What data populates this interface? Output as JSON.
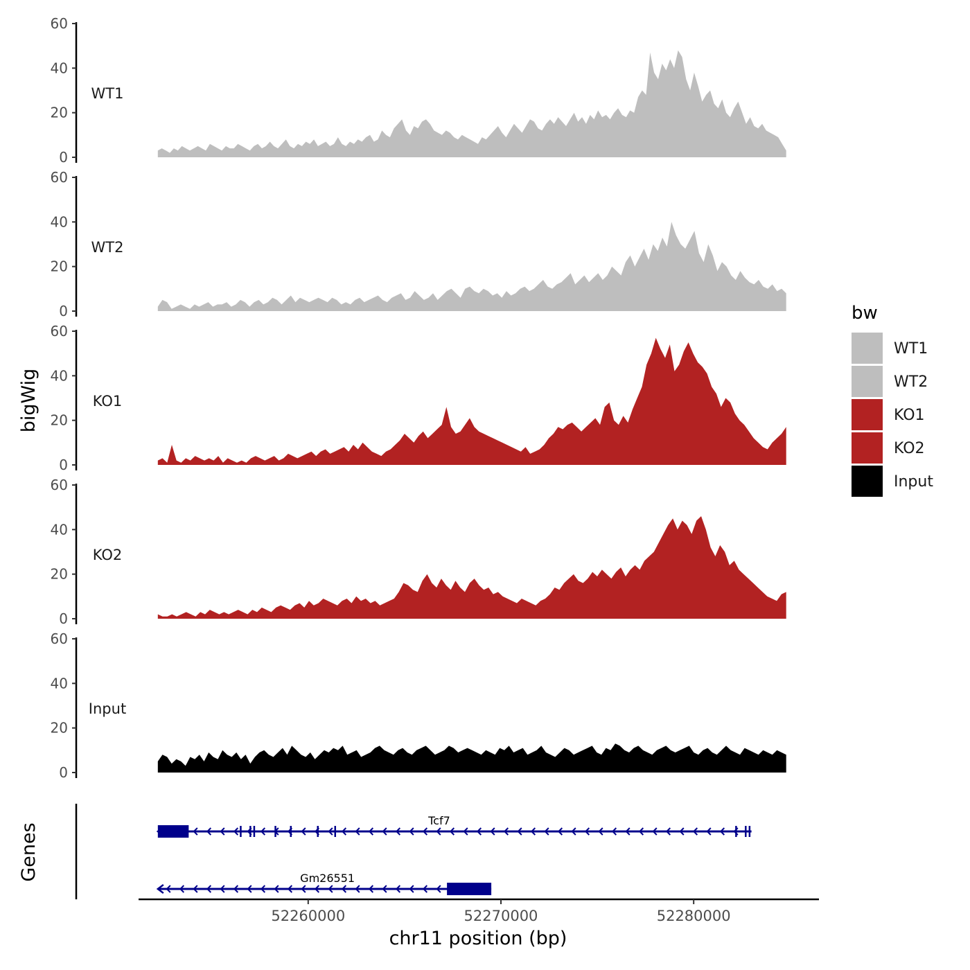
{
  "chart_data": {
    "type": "area",
    "title": "",
    "ylabel": "bigWig",
    "xlabel": "chr11 position (bp)",
    "xlim": [
      52251200,
      52286500
    ],
    "data_x_range": [
      52252200,
      52284800
    ],
    "y_ticks": [
      0,
      20,
      40,
      60
    ],
    "x_ticks": [
      52260000,
      52270000,
      52280000
    ],
    "x_tick_labels": [
      "52260000",
      "52270000",
      "52280000"
    ],
    "legend": {
      "title": "bw",
      "placement": "right",
      "entries": [
        {
          "label": "WT1",
          "color": "#BEBEBE"
        },
        {
          "label": "WT2",
          "color": "#BEBEBE"
        },
        {
          "label": "KO1",
          "color": "#B22222"
        },
        {
          "label": "KO2",
          "color": "#B22222"
        },
        {
          "label": "Input",
          "color": "#000000"
        }
      ]
    },
    "series": [
      {
        "name": "WT1",
        "label": "WT1",
        "color": "#BEBEBE",
        "ylim": [
          0,
          60
        ],
        "values": [
          3,
          4,
          3,
          2,
          4,
          3,
          5,
          4,
          3,
          4,
          5,
          4,
          3,
          6,
          5,
          4,
          3,
          5,
          4,
          4,
          6,
          5,
          4,
          3,
          5,
          6,
          4,
          5,
          7,
          5,
          4,
          6,
          8,
          5,
          4,
          6,
          5,
          7,
          6,
          8,
          5,
          6,
          7,
          5,
          6,
          9,
          6,
          5,
          7,
          6,
          8,
          7,
          9,
          10,
          7,
          8,
          12,
          10,
          9,
          13,
          15,
          17,
          12,
          10,
          14,
          13,
          16,
          17,
          15,
          12,
          11,
          10,
          12,
          11,
          9,
          8,
          10,
          9,
          8,
          7,
          6,
          9,
          8,
          10,
          12,
          14,
          11,
          9,
          12,
          15,
          13,
          11,
          14,
          17,
          16,
          13,
          12,
          15,
          17,
          15,
          18,
          16,
          14,
          17,
          20,
          16,
          18,
          15,
          19,
          17,
          21,
          18,
          19,
          17,
          20,
          22,
          19,
          18,
          21,
          20,
          27,
          30,
          28,
          47,
          38,
          35,
          42,
          39,
          44,
          40,
          48,
          45,
          35,
          30,
          38,
          32,
          25,
          28,
          30,
          24,
          22,
          26,
          20,
          18,
          22,
          25,
          20,
          15,
          18,
          14,
          13,
          15,
          12,
          11,
          10,
          9,
          6,
          3
        ]
      },
      {
        "name": "WT2",
        "label": "WT2",
        "color": "#BEBEBE",
        "ylim": [
          0,
          60
        ],
        "values": [
          2,
          5,
          4,
          1,
          2,
          3,
          2,
          1,
          3,
          2,
          3,
          4,
          2,
          3,
          3,
          4,
          2,
          3,
          5,
          4,
          2,
          4,
          5,
          3,
          4,
          6,
          5,
          3,
          5,
          7,
          4,
          6,
          5,
          4,
          5,
          6,
          5,
          4,
          6,
          5,
          3,
          4,
          3,
          5,
          6,
          4,
          5,
          6,
          7,
          5,
          4,
          6,
          7,
          8,
          5,
          6,
          9,
          7,
          5,
          6,
          8,
          5,
          7,
          9,
          10,
          8,
          6,
          10,
          11,
          9,
          8,
          10,
          9,
          7,
          8,
          6,
          9,
          7,
          8,
          10,
          11,
          9,
          10,
          12,
          14,
          11,
          10,
          12,
          13,
          15,
          17,
          12,
          14,
          16,
          13,
          15,
          17,
          14,
          16,
          20,
          18,
          16,
          22,
          25,
          20,
          24,
          28,
          23,
          30,
          27,
          33,
          29,
          40,
          34,
          30,
          28,
          32,
          36,
          26,
          22,
          30,
          25,
          18,
          22,
          20,
          16,
          14,
          18,
          15,
          13,
          12,
          14,
          11,
          10,
          12,
          9,
          10,
          8
        ]
      },
      {
        "name": "KO1",
        "label": "KO1",
        "color": "#B22222",
        "ylim": [
          0,
          60
        ],
        "values": [
          2,
          3,
          1,
          9,
          2,
          1,
          3,
          2,
          4,
          3,
          2,
          3,
          2,
          4,
          1,
          3,
          2,
          1,
          2,
          1,
          3,
          4,
          3,
          2,
          3,
          4,
          2,
          3,
          5,
          4,
          3,
          4,
          5,
          6,
          4,
          6,
          7,
          5,
          6,
          7,
          8,
          6,
          9,
          7,
          10,
          8,
          6,
          5,
          4,
          6,
          7,
          9,
          11,
          14,
          12,
          10,
          13,
          15,
          12,
          14,
          16,
          18,
          26,
          17,
          14,
          15,
          18,
          21,
          17,
          15,
          14,
          13,
          12,
          11,
          10,
          9,
          8,
          7,
          6,
          8,
          5,
          6,
          7,
          9,
          12,
          14,
          17,
          16,
          18,
          19,
          17,
          15,
          17,
          19,
          21,
          18,
          26,
          28,
          20,
          18,
          22,
          19,
          25,
          30,
          35,
          45,
          50,
          57,
          52,
          48,
          54,
          42,
          45,
          51,
          55,
          50,
          46,
          44,
          41,
          35,
          32,
          26,
          30,
          28,
          23,
          20,
          18,
          15,
          12,
          10,
          8,
          7,
          10,
          12,
          14,
          17
        ]
      },
      {
        "name": "KO2",
        "label": "KO2",
        "color": "#B22222",
        "ylim": [
          0,
          60
        ],
        "values": [
          2,
          1,
          1,
          2,
          1,
          2,
          3,
          2,
          1,
          3,
          2,
          4,
          3,
          2,
          3,
          2,
          3,
          4,
          3,
          2,
          4,
          3,
          5,
          4,
          3,
          5,
          6,
          5,
          4,
          6,
          7,
          5,
          8,
          6,
          7,
          9,
          8,
          7,
          6,
          8,
          9,
          7,
          10,
          8,
          9,
          7,
          8,
          6,
          7,
          8,
          9,
          12,
          16,
          15,
          13,
          12,
          17,
          20,
          16,
          14,
          18,
          15,
          13,
          17,
          14,
          12,
          16,
          18,
          15,
          13,
          14,
          11,
          12,
          10,
          9,
          8,
          7,
          9,
          8,
          7,
          6,
          8,
          9,
          11,
          14,
          13,
          16,
          18,
          20,
          17,
          16,
          18,
          21,
          19,
          22,
          20,
          18,
          21,
          23,
          19,
          22,
          24,
          22,
          26,
          28,
          30,
          34,
          38,
          42,
          45,
          40,
          44,
          42,
          38,
          44,
          46,
          40,
          32,
          28,
          33,
          30,
          24,
          26,
          22,
          20,
          18,
          16,
          14,
          12,
          10,
          9,
          8,
          11,
          12
        ]
      },
      {
        "name": "Input",
        "label": "Input",
        "color": "#000000",
        "ylim": [
          0,
          60
        ],
        "values": [
          5,
          8,
          7,
          4,
          6,
          5,
          3,
          7,
          6,
          8,
          5,
          9,
          7,
          6,
          10,
          8,
          7,
          9,
          6,
          8,
          4,
          7,
          9,
          10,
          8,
          7,
          9,
          11,
          8,
          12,
          10,
          8,
          7,
          9,
          6,
          8,
          10,
          9,
          11,
          10,
          12,
          8,
          9,
          10,
          7,
          8,
          9,
          11,
          12,
          10,
          9,
          8,
          10,
          11,
          9,
          8,
          10,
          11,
          12,
          10,
          8,
          9,
          10,
          12,
          11,
          9,
          10,
          11,
          10,
          9,
          8,
          10,
          9,
          8,
          11,
          10,
          12,
          9,
          10,
          11,
          8,
          9,
          10,
          12,
          9,
          8,
          7,
          9,
          11,
          10,
          8,
          9,
          10,
          11,
          12,
          9,
          8,
          11,
          10,
          13,
          12,
          10,
          9,
          11,
          12,
          10,
          9,
          8,
          10,
          11,
          12,
          10,
          9,
          10,
          11,
          12,
          9,
          8,
          10,
          11,
          9,
          8,
          10,
          12,
          10,
          9,
          8,
          11,
          10,
          9,
          8,
          10,
          9,
          8,
          10,
          9,
          8
        ]
      }
    ],
    "genes_track": {
      "label": "Genes",
      "color": "#00008B",
      "genes": [
        {
          "name": "Tcf7",
          "start": 52252200,
          "end": 52283000,
          "strand": "-",
          "thick_segments": [
            [
              52252200,
              52253800
            ]
          ],
          "exon_ticks": [
            52256500,
            52257000,
            52257200,
            52258300,
            52259100,
            52260500,
            52261400,
            52282200,
            52282700,
            52282900
          ]
        },
        {
          "name": "Gm26551",
          "start": 52252200,
          "end": 52269500,
          "strand": "-",
          "thick_segments": [
            [
              52267200,
              52269500
            ]
          ],
          "exon_ticks": []
        }
      ]
    }
  }
}
